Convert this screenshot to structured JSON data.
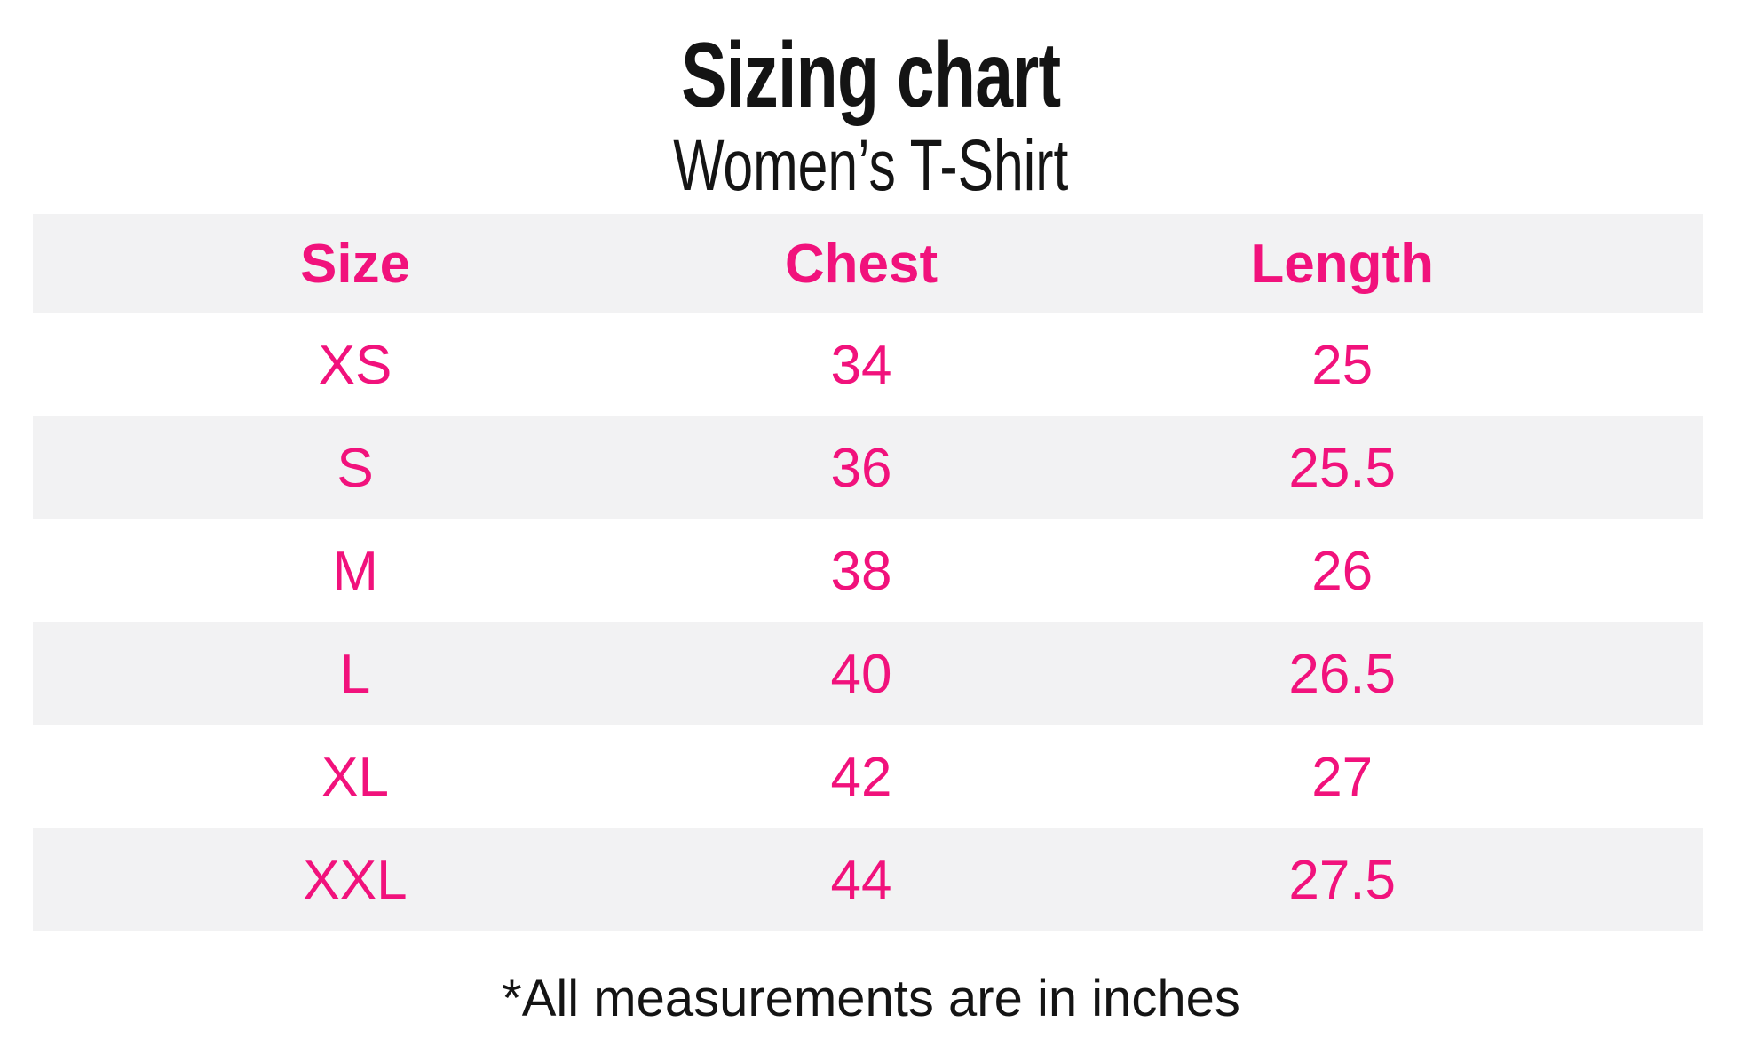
{
  "page": {
    "title": "Sizing chart",
    "subtitle": "Women’s T-Shirt",
    "footnote": "*All measurements are in inches"
  },
  "table": {
    "columns": [
      "Size",
      "Chest",
      "Length"
    ],
    "rows": [
      {
        "size": "XS",
        "chest": "34",
        "length": "25"
      },
      {
        "size": "S",
        "chest": "36",
        "length": "25.5"
      },
      {
        "size": "M",
        "chest": "38",
        "length": "26"
      },
      {
        "size": "L",
        "chest": "40",
        "length": "26.5"
      },
      {
        "size": "XL",
        "chest": "42",
        "length": "27"
      },
      {
        "size": "XXL",
        "chest": "44",
        "length": "27.5"
      }
    ]
  },
  "colors": {
    "accent": "#f1127c",
    "row_alt_background": "#f2f2f3",
    "ink": "#141414",
    "page_background": "#ffffff"
  },
  "chart_data": {
    "type": "table",
    "title": "Sizing chart",
    "subtitle": "Women’s T-Shirt",
    "columns": [
      "Size",
      "Chest",
      "Length"
    ],
    "rows": [
      [
        "XS",
        34,
        25
      ],
      [
        "S",
        36,
        25.5
      ],
      [
        "M",
        38,
        26
      ],
      [
        "L",
        40,
        26.5
      ],
      [
        "XL",
        42,
        27
      ],
      [
        "XXL",
        44,
        27.5
      ]
    ],
    "footnote": "*All measurements are in inches",
    "units": "inches",
    "layout_hints": {
      "header_text_color": "pink-accent",
      "striped_rows": true,
      "stripe_order": [
        "header-gray",
        "white",
        "gray",
        "white",
        "gray",
        "white",
        "gray"
      ]
    }
  }
}
